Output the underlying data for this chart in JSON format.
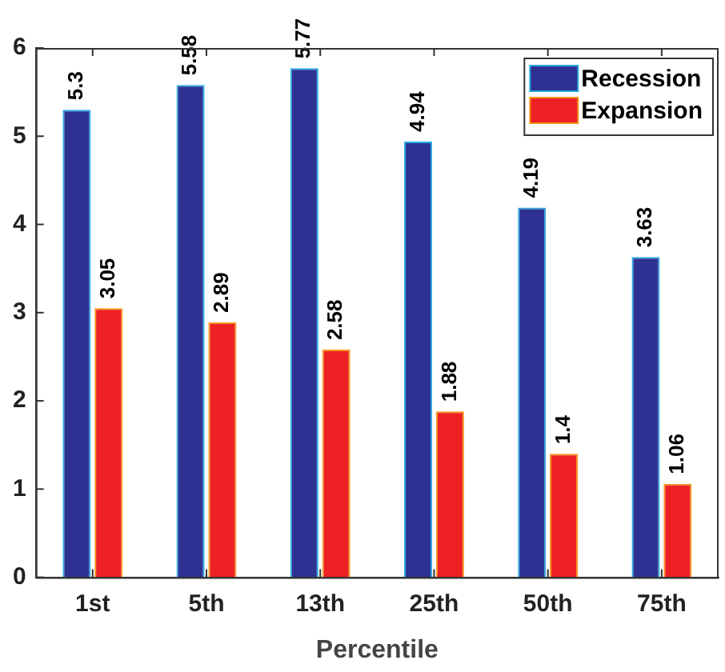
{
  "chart_data": {
    "type": "bar",
    "xlabel": "Percentile",
    "categories": [
      "1st",
      "5th",
      "13th",
      "25th",
      "50th",
      "75th"
    ],
    "series": [
      {
        "name": "Recession",
        "color": "#2e3192",
        "values": [
          5.3,
          5.58,
          5.77,
          4.94,
          4.19,
          3.63
        ]
      },
      {
        "name": "Expansion",
        "color": "#ed2024",
        "values": [
          3.05,
          2.89,
          2.58,
          1.88,
          1.4,
          1.06
        ]
      }
    ],
    "ylim": [
      0,
      6
    ],
    "yticks": [
      0,
      1,
      2,
      3,
      4,
      5,
      6
    ],
    "grid": false,
    "legend": "top right",
    "data_labels": true
  }
}
